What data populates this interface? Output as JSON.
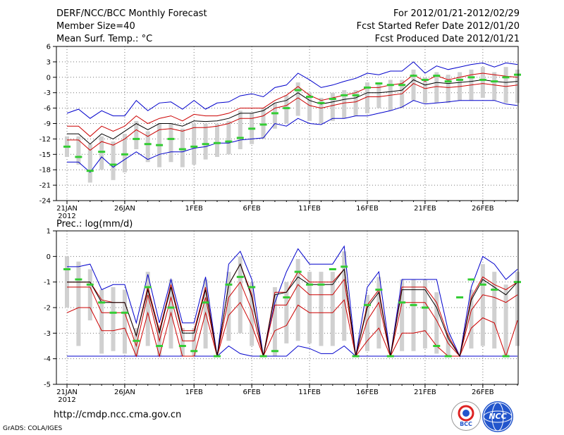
{
  "header": {
    "title": "DERF/NCC/BCC Monthly Forecast",
    "member_size": "Member Size=40",
    "variable": "Mean Surf. Temp.: °C",
    "period": "For 2012/01/21-2012/02/29",
    "started": "Fcst Started Refer Date 2012/01/20",
    "produced": "Fcst Produced Date 2012/01/21"
  },
  "footer": {
    "url": "http://cmdp.ncc.cma.gov.cn",
    "credit": "GrADS: COLA/IGES",
    "logo_left": "BCC",
    "logo_right": "NCC"
  },
  "colors": {
    "ensemble": "#0000cc",
    "spread": "#cc0000",
    "mean": "#000000",
    "obs": "#33cc33",
    "box": "#d0d0d0"
  },
  "chart_data": [
    {
      "type": "line",
      "title": "Mean Surf. Temp.: °C",
      "x_tick_labels": [
        "21JAN",
        "26JAN",
        "1FEB",
        "6FEB",
        "11FEB",
        "16FEB",
        "21FEB",
        "26FEB"
      ],
      "x_tick_days": [
        0,
        5,
        11,
        16,
        21,
        26,
        31,
        36
      ],
      "x_year_label": "2012",
      "ylim": [
        -24,
        6
      ],
      "y_ticks": [
        -24,
        -21,
        -18,
        -15,
        -12,
        -9,
        -6,
        -3,
        0,
        3,
        6
      ],
      "y_tick_labels": [
        "-24",
        "-21",
        "-18",
        "-15",
        "-12",
        "-9",
        "-6",
        "-3",
        "0",
        "3",
        "6"
      ],
      "days": 40,
      "series": [
        {
          "name": "Ensemble max",
          "values": [
            -7,
            -6.2,
            -8,
            -6.5,
            -7.5,
            -7.5,
            -4.5,
            -6.5,
            -5,
            -4.8,
            -6.2,
            -4.5,
            -6.2,
            -5,
            -4.8,
            -3.6,
            -3.2,
            -3.8,
            -2,
            -1.5,
            0.8,
            -0.5,
            -2,
            -1.5,
            -0.8,
            -0.2,
            0.8,
            0.5,
            1.2,
            1.2,
            3,
            0.8,
            2.2,
            1.5,
            2,
            2.5,
            2.8,
            2,
            2.8,
            2.5
          ]
        },
        {
          "name": "Upper spread",
          "values": [
            -9.5,
            -9.5,
            -11.5,
            -9.5,
            -10.5,
            -9.5,
            -7.5,
            -9,
            -8,
            -7.5,
            -8.5,
            -7.2,
            -7.5,
            -7.5,
            -7,
            -6,
            -6,
            -6,
            -4.5,
            -3.5,
            -1.8,
            -3.5,
            -4.5,
            -4,
            -3.5,
            -3,
            -2,
            -2,
            -1.5,
            -1.2,
            0.5,
            -0.8,
            0.3,
            -0.5,
            0,
            0.5,
            0.8,
            0.5,
            0.2,
            0
          ]
        },
        {
          "name": "Ensemble mean",
          "values": [
            -11,
            -11,
            -13,
            -11,
            -12,
            -10.5,
            -9,
            -10.2,
            -9,
            -9,
            -9.5,
            -8.5,
            -8.6,
            -8.5,
            -8,
            -7,
            -7,
            -6.5,
            -5,
            -4.5,
            -3,
            -4.5,
            -5.2,
            -4.8,
            -4.3,
            -4,
            -3,
            -3,
            -2.8,
            -2.5,
            -0.5,
            -1.5,
            -1,
            -1.2,
            -1,
            -0.8,
            -0.5,
            -0.8,
            -1,
            -0.8
          ]
        },
        {
          "name": "Lower spread",
          "values": [
            -12.2,
            -12.2,
            -14.2,
            -12.5,
            -13.2,
            -12,
            -10.2,
            -11.5,
            -10.2,
            -10,
            -10.5,
            -9.8,
            -9.8,
            -9.5,
            -9,
            -8,
            -8,
            -7.5,
            -6,
            -5.5,
            -4,
            -5.5,
            -6,
            -5.5,
            -5,
            -4.8,
            -3.8,
            -3.8,
            -3.5,
            -3.2,
            -1.2,
            -2.2,
            -1.8,
            -2,
            -1.8,
            -1.5,
            -1.2,
            -1.5,
            -1.8,
            -1.5
          ]
        },
        {
          "name": "Ensemble min",
          "values": [
            -16.5,
            -16.5,
            -18.5,
            -15.5,
            -17.5,
            -16,
            -14.5,
            -16,
            -15,
            -14.5,
            -14.5,
            -13.8,
            -13.5,
            -12.8,
            -12.8,
            -12.2,
            -12,
            -11.8,
            -9,
            -9.5,
            -8,
            -9,
            -9.2,
            -8,
            -8,
            -7.5,
            -7.5,
            -7,
            -6.5,
            -5.8,
            -4.5,
            -5.2,
            -5,
            -4.8,
            -4.5,
            -4.5,
            -4.5,
            -4.5,
            -5.2,
            -5.5
          ]
        },
        {
          "name": "Observation (green marks)",
          "values": [
            -13.5,
            -15.5,
            -18.2,
            -14.5,
            -17,
            -15,
            -12,
            -13,
            -13.2,
            -12,
            -14,
            -13.5,
            -13,
            -12.8,
            -12.5,
            -11.8,
            -10,
            -9.2,
            -7,
            -6,
            -2.5,
            -3.8,
            -5,
            -4.2,
            -3.5,
            -3.5,
            -2,
            -1.2,
            -1.5,
            -1.5,
            0.3,
            -0.5,
            0.3,
            -0.8,
            -0.5,
            0,
            -0.5,
            -0.8,
            0,
            0.5
          ]
        },
        {
          "name": "Box high",
          "values": [
            -11.5,
            -11.5,
            -13,
            -11.5,
            -12.5,
            -11,
            -8.5,
            -10.5,
            -9,
            -9,
            -10,
            -9,
            -9,
            -9,
            -8.5,
            -6.5,
            -7,
            -6,
            -5,
            -3.5,
            -1,
            -3,
            -4,
            -3,
            -2.5,
            -2.5,
            -1,
            -1,
            -0.5,
            -0.5,
            1.5,
            0,
            1,
            0.5,
            1,
            1.5,
            2,
            1,
            2,
            1.5
          ]
        },
        {
          "name": "Box low",
          "values": [
            -15.5,
            -17,
            -20.5,
            -18,
            -20,
            -18.5,
            -14,
            -16.5,
            -17.5,
            -16.5,
            -17.5,
            -17,
            -16,
            -15.5,
            -15,
            -14,
            -13,
            -12,
            -10,
            -9,
            -7.5,
            -8.5,
            -9,
            -8.5,
            -8,
            -7.5,
            -7,
            -6,
            -6.5,
            -6,
            -4.5,
            -5,
            -5,
            -5,
            -4.5,
            -4.5,
            -4,
            -4.5,
            -5,
            -5
          ]
        }
      ]
    },
    {
      "type": "line",
      "title": "Prec.: log(mm/d)",
      "x_tick_labels": [
        "21JAN",
        "26JAN",
        "1FEB",
        "6FEB",
        "11FEB",
        "16FEB",
        "21FEB",
        "26FEB"
      ],
      "x_tick_days": [
        0,
        5,
        11,
        16,
        21,
        26,
        31,
        36
      ],
      "x_year_label": "2012",
      "ylim": [
        -5,
        1
      ],
      "y_ticks": [
        -5,
        -4,
        -3,
        -2,
        -1,
        0,
        1
      ],
      "y_tick_labels": [
        "-5",
        "-4",
        "-3",
        "-2",
        "-1",
        "0",
        "1"
      ],
      "days": 40,
      "series": [
        {
          "name": "Ensemble max",
          "values": [
            -0.4,
            -0.4,
            -0.3,
            -1.3,
            -1.1,
            -1.1,
            -2.6,
            -0.7,
            -2.6,
            -0.9,
            -2.6,
            -2.6,
            -0.8,
            -3.9,
            -0.3,
            0.2,
            -0.9,
            -3.9,
            -1.8,
            -0.6,
            0.3,
            -0.3,
            -0.3,
            -0.3,
            0.4,
            -3.9,
            -1.2,
            -0.6,
            -3.9,
            -0.9,
            -0.9,
            -0.9,
            -0.9,
            -2.9,
            -3.9,
            -1.2,
            0,
            -0.3,
            -0.9,
            -0.5
          ]
        },
        {
          "name": "Upper spread",
          "values": [
            -1,
            -1,
            -1,
            -1.7,
            -1.8,
            -1.8,
            -3.1,
            -1.2,
            -2.9,
            -1.1,
            -2.9,
            -2.9,
            -1.2,
            -3.9,
            -1.1,
            -0.3,
            -1.5,
            -3.9,
            -1.4,
            -1.4,
            -0.6,
            -1,
            -1,
            -1,
            -0.5,
            -3.9,
            -1.9,
            -1.3,
            -3.9,
            -1.2,
            -1.2,
            -1.2,
            -1.8,
            -3.1,
            -3.9,
            -1.6,
            -0.8,
            -1.1,
            -1.3,
            -1
          ]
        },
        {
          "name": "Ensemble mean",
          "values": [
            -1,
            -1,
            -1,
            -1.8,
            -1.8,
            -1.8,
            -3.1,
            -1.3,
            -3,
            -1.2,
            -3,
            -3,
            -1.3,
            -3.9,
            -1.1,
            -0.3,
            -1.6,
            -3.9,
            -1.5,
            -1.4,
            -0.8,
            -1.1,
            -1.1,
            -1.1,
            -0.5,
            -3.9,
            -2,
            -1.4,
            -3.9,
            -1.3,
            -1.3,
            -1.3,
            -2,
            -3.2,
            -3.9,
            -1.7,
            -0.9,
            -1.2,
            -1.5,
            -1
          ]
        },
        {
          "name": "Lower spread",
          "values": [
            -1.2,
            -1.2,
            -1.2,
            -2.2,
            -2.2,
            -2.2,
            -3.5,
            -1.5,
            -3.3,
            -1.6,
            -3.3,
            -3.3,
            -1.6,
            -3.9,
            -1.6,
            -1,
            -2.1,
            -3.9,
            -1.9,
            -1.9,
            -1.1,
            -1.5,
            -1.5,
            -1.5,
            -0.9,
            -3.9,
            -2.5,
            -1.8,
            -3.9,
            -1.8,
            -1.8,
            -1.8,
            -2.5,
            -3.4,
            -3.9,
            -2.1,
            -1.5,
            -1.6,
            -1.8,
            -1.5
          ]
        },
        {
          "name": "Lower spread 2",
          "values": [
            -2.2,
            -2,
            -2,
            -2.9,
            -2.9,
            -2.8,
            -3.9,
            -2.2,
            -3.9,
            -2.2,
            -3.9,
            -3.9,
            -2.2,
            -3.9,
            -2.3,
            -1.8,
            -2.7,
            -3.9,
            -2.9,
            -2.7,
            -1.9,
            -2.2,
            -2.2,
            -2.2,
            -1.7,
            -3.9,
            -3.3,
            -2.8,
            -3.9,
            -3,
            -3,
            -2.9,
            -3.5,
            -3.9,
            -3.9,
            -2.8,
            -2.4,
            -2.6,
            -3.9,
            -2.5
          ]
        },
        {
          "name": "Ensemble min",
          "values": [
            -3.9,
            -3.9,
            -3.9,
            -3.9,
            -3.9,
            -3.9,
            -3.9,
            -3.9,
            -3.9,
            -3.9,
            -3.9,
            -3.9,
            -3.9,
            -3.9,
            -3.5,
            -3.8,
            -3.9,
            -3.9,
            -3.9,
            -3.9,
            -3.5,
            -3.6,
            -3.8,
            -3.8,
            -3.5,
            -3.9,
            -3.9,
            -3.9,
            -3.9,
            -3.9,
            -3.9,
            -3.9,
            -3.9,
            -3.9,
            -3.9,
            -3.9,
            -3.9,
            -3.9,
            -3.9,
            -3.9
          ]
        },
        {
          "name": "Observation (green marks)",
          "values": [
            -0.5,
            -0.9,
            -1.1,
            -1.8,
            -2.2,
            -2.2,
            -3.3,
            -1.2,
            -3.5,
            -2,
            -3.5,
            -3.7,
            -1.8,
            -3.9,
            -1.1,
            -0.8,
            -1.2,
            -3.9,
            -3.7,
            -1.6,
            -0.6,
            -1.1,
            -1.1,
            -0.5,
            -0.4,
            -3.9,
            -1.9,
            -1.3,
            -3.9,
            -1.8,
            -1.9,
            -2,
            -3.5,
            -3.9,
            -1.6,
            -0.9,
            -1.1,
            -1.3,
            -3.9,
            -1
          ]
        },
        {
          "name": "Box high",
          "values": [
            0,
            -0.2,
            -0.5,
            -1.3,
            -1.2,
            -1.3,
            -2.8,
            -0.6,
            -2.7,
            -0.9,
            -2.8,
            -2.8,
            -0.9,
            -3.9,
            -0.6,
            0,
            -1,
            -3.9,
            -1.2,
            -1,
            -0.1,
            -0.6,
            -0.6,
            -0.6,
            0.2,
            -3.9,
            -1.5,
            -0.8,
            -3.9,
            -0.9,
            -0.9,
            -0.9,
            -1.4,
            -3,
            -3.9,
            -1.3,
            -0.3,
            -0.6,
            -1.1,
            -0.6
          ]
        },
        {
          "name": "Box low",
          "values": [
            -2,
            -3.5,
            -2.5,
            -3.8,
            -3.7,
            -3.8,
            -3.9,
            -3.5,
            -3.9,
            -3.6,
            -3.9,
            -3.9,
            -3.6,
            -3.9,
            -3.3,
            -3,
            -3.5,
            -3.9,
            -3.9,
            -3.4,
            -3.3,
            -3.4,
            -3.5,
            -3.5,
            -3.3,
            -3.9,
            -3.7,
            -3.6,
            -3.9,
            -3.7,
            -3.7,
            -3.6,
            -3.8,
            -3.9,
            -3.9,
            -3.6,
            -3.5,
            -3.6,
            -3.9,
            -3.5
          ]
        }
      ]
    }
  ]
}
